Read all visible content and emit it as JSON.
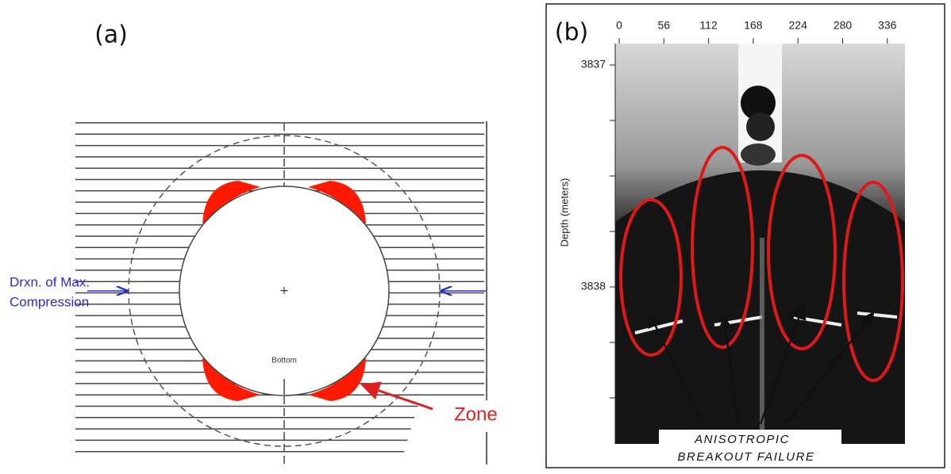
{
  "panel_a": {
    "label": "(a)",
    "direction_label": [
      "Drxn. of Max.",
      "Compression"
    ],
    "bottom_label": "Bottom",
    "zone_label": "Zone"
  },
  "panel_b": {
    "label": "(b)",
    "x_ticks": [
      "0",
      "56",
      "112",
      "168",
      "224",
      "280",
      "336"
    ],
    "y_ticks": [
      "3837",
      "3838"
    ],
    "y_axis_label": "Depth (meters)",
    "caption": [
      "ANISOTROPIC",
      "BREAKOUT FAILURE"
    ]
  }
}
